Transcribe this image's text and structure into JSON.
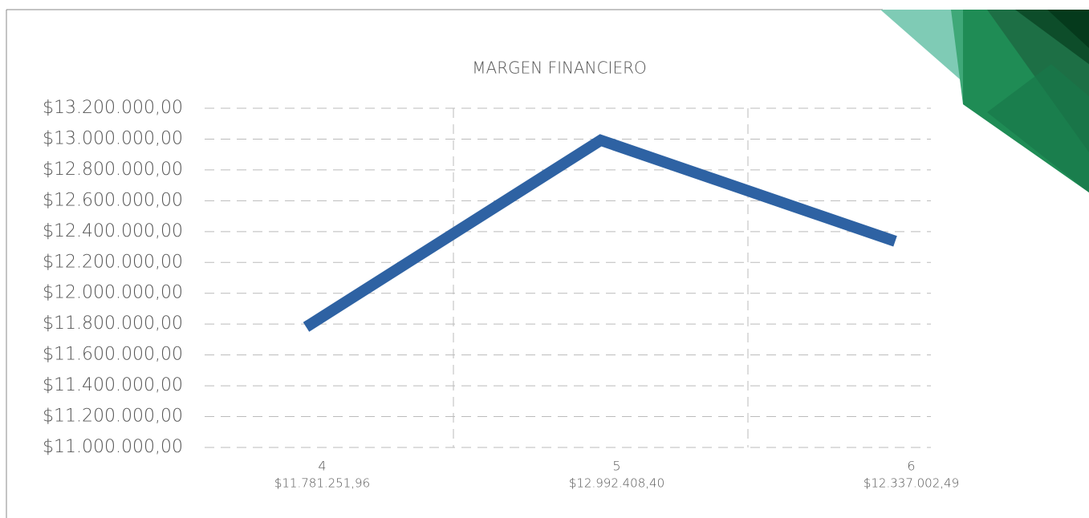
{
  "chart_data": {
    "type": "line",
    "title": "MARGEN FINANCIERO",
    "categories": [
      "4",
      "5",
      "6"
    ],
    "values": [
      11781251.96,
      12992408.4,
      12337002.49
    ],
    "value_labels": [
      "$11.781.251,96",
      "$12.992.408,40",
      "$12.337.002,49"
    ],
    "color": "#2e62a3",
    "ylim": [
      11000000,
      13200000
    ],
    "yticks": [
      {
        "value": 11000000,
        "label": "$11.000.000,00"
      },
      {
        "value": 11200000,
        "label": "$11.200.000,00"
      },
      {
        "value": 11400000,
        "label": "$11.400.000,00"
      },
      {
        "value": 11600000,
        "label": "$11.600.000,00"
      },
      {
        "value": 11800000,
        "label": "$11.800.000,00"
      },
      {
        "value": 12000000,
        "label": "$12.000.000,00"
      },
      {
        "value": 12200000,
        "label": "$12.200.000,00"
      },
      {
        "value": 12400000,
        "label": "$12.400.000,00"
      },
      {
        "value": 12600000,
        "label": "$12.600.000,00"
      },
      {
        "value": 12800000,
        "label": "$12.800.000,00"
      },
      {
        "value": 13000000,
        "label": "$13.000.000,00"
      },
      {
        "value": 13200000,
        "label": "$13.200.000,00"
      }
    ],
    "grid": true
  }
}
